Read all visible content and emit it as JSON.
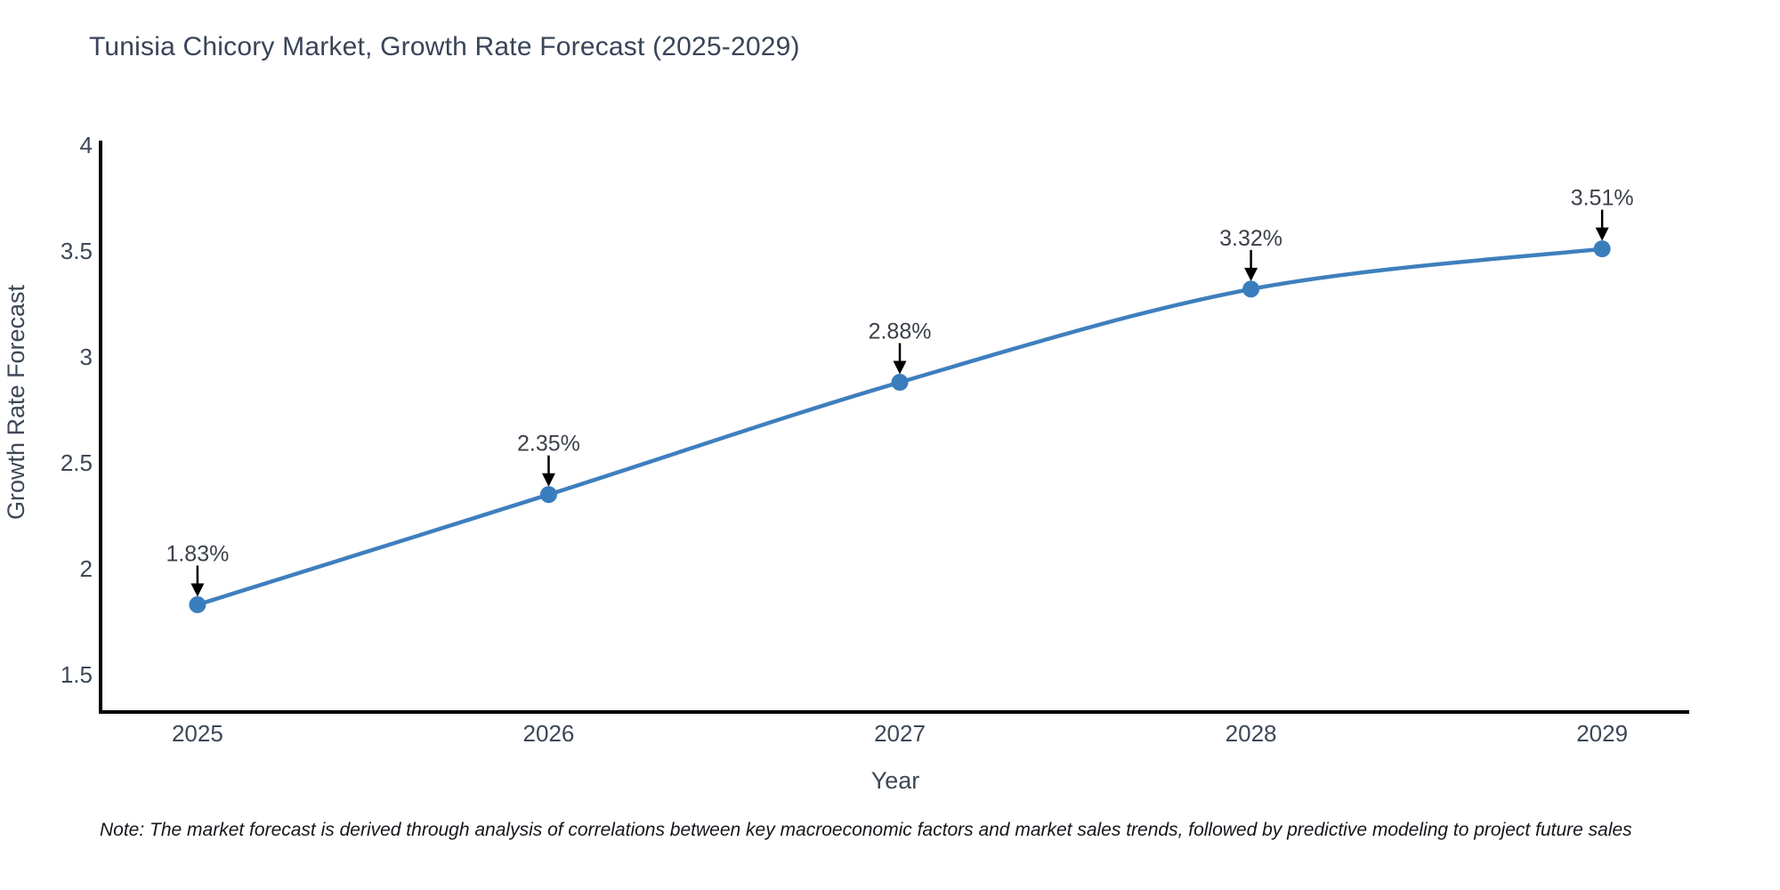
{
  "title": "Tunisia Chicory Market, Growth Rate Forecast (2025-2029)",
  "note": "Note: The market forecast is derived through analysis of correlations between key macroeconomic factors and market sales trends, followed by predictive modeling to project future sales",
  "chart_data": {
    "type": "line",
    "x": [
      2025,
      2026,
      2027,
      2028,
      2029
    ],
    "values": [
      1.83,
      2.35,
      2.88,
      3.32,
      3.51
    ],
    "point_labels": [
      "1.83%",
      "2.35%",
      "2.88%",
      "3.32%",
      "3.51%"
    ],
    "title": "Tunisia Chicory Market, Growth Rate Forecast (2025-2029)",
    "xlabel": "Year",
    "ylabel": "Growth Rate Forecast",
    "yticks": [
      1.5,
      2,
      2.5,
      3,
      3.5,
      4
    ],
    "xticks": [
      2025,
      2026,
      2027,
      2028,
      2029
    ],
    "xlim": [
      2024.724,
      2029.248
    ],
    "ylim": [
      1.3235,
      4.0126
    ],
    "grid": false,
    "legend": "none",
    "smoothed_line": true,
    "annotation_arrows": "black arrows pointing down to each marker"
  },
  "colors": {
    "line": "#3e7fbd",
    "marker": "#3a7dbd",
    "axis": "#000000",
    "title_text": "#3a4459",
    "tick_text": "#3d4757",
    "axis_label_text": "#3d4757",
    "annotation_text": "#3c414b",
    "arrow": "#000000",
    "note_text": "#15171c",
    "background": "#ffffff"
  }
}
